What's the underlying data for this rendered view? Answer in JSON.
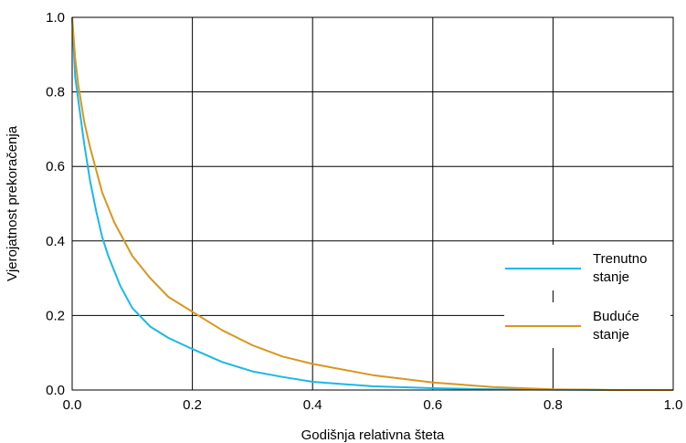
{
  "chart_data": {
    "type": "line",
    "xlabel": "Godišnja relativna šteta",
    "ylabel": "Vjerojatnost prekoračenja",
    "xlim": [
      0,
      1.0
    ],
    "ylim": [
      0,
      1.0
    ],
    "x_ticks": [
      "0.0",
      "0.2",
      "0.4",
      "0.6",
      "0.8",
      "1.0"
    ],
    "y_ticks": [
      "0.0",
      "0.2",
      "0.4",
      "0.6",
      "0.8",
      "1.0"
    ],
    "grid": true,
    "legend_position": "right",
    "series": [
      {
        "name": "Trenutno stanje",
        "name_lines": [
          "Trenutno",
          "stanje"
        ],
        "color": "#1ab8e8",
        "x": [
          0.0,
          0.005,
          0.01,
          0.02,
          0.03,
          0.04,
          0.05,
          0.06,
          0.08,
          0.1,
          0.13,
          0.16,
          0.2,
          0.25,
          0.3,
          0.35,
          0.4,
          0.5,
          0.6,
          0.7,
          0.8,
          0.9,
          1.0
        ],
        "y": [
          1.0,
          0.84,
          0.78,
          0.66,
          0.56,
          0.48,
          0.41,
          0.36,
          0.28,
          0.22,
          0.17,
          0.14,
          0.11,
          0.075,
          0.05,
          0.035,
          0.022,
          0.01,
          0.005,
          0.002,
          0.001,
          0.0,
          0.0
        ]
      },
      {
        "name": "Buduće stanje",
        "name_lines": [
          "Buduće",
          "stanje"
        ],
        "color": "#d9961e",
        "x": [
          0.0,
          0.005,
          0.01,
          0.02,
          0.03,
          0.05,
          0.07,
          0.09,
          0.1,
          0.13,
          0.16,
          0.2,
          0.25,
          0.3,
          0.35,
          0.4,
          0.5,
          0.6,
          0.7,
          0.8,
          0.9,
          1.0
        ],
        "y": [
          1.0,
          0.89,
          0.82,
          0.72,
          0.65,
          0.53,
          0.45,
          0.39,
          0.36,
          0.3,
          0.25,
          0.21,
          0.16,
          0.12,
          0.09,
          0.07,
          0.04,
          0.02,
          0.008,
          0.002,
          0.0,
          0.0
        ]
      }
    ]
  }
}
